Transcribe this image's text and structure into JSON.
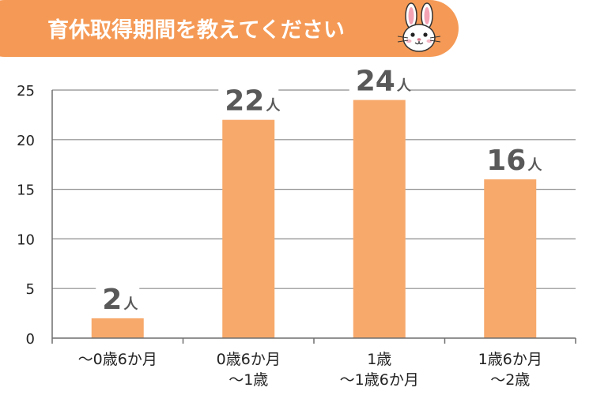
{
  "colors": {
    "banner": "#F59A56",
    "bar": "#F7A96B",
    "grid": "#8C8C8C",
    "axis": "#6E6E6E",
    "tick_text": "#222222",
    "data_label": "#595959"
  },
  "banner": {
    "title": "育休取得期間を教えてください",
    "icon": "rabbit-icon"
  },
  "chart_data": {
    "type": "bar",
    "title": "育休取得期間を教えてください",
    "categories": [
      [
        "～0歳6か月"
      ],
      [
        "0歳6か月",
        "～1歳"
      ],
      [
        "1歳",
        "～1歳6か月"
      ],
      [
        "1歳6か月",
        "～2歳"
      ]
    ],
    "values": [
      2,
      22,
      24,
      16
    ],
    "value_unit": "人",
    "ylim": [
      0,
      25
    ],
    "yticks": [
      0,
      5,
      10,
      15,
      20,
      25
    ],
    "xlabel": "",
    "ylabel": "",
    "grid": true,
    "legend": false
  }
}
